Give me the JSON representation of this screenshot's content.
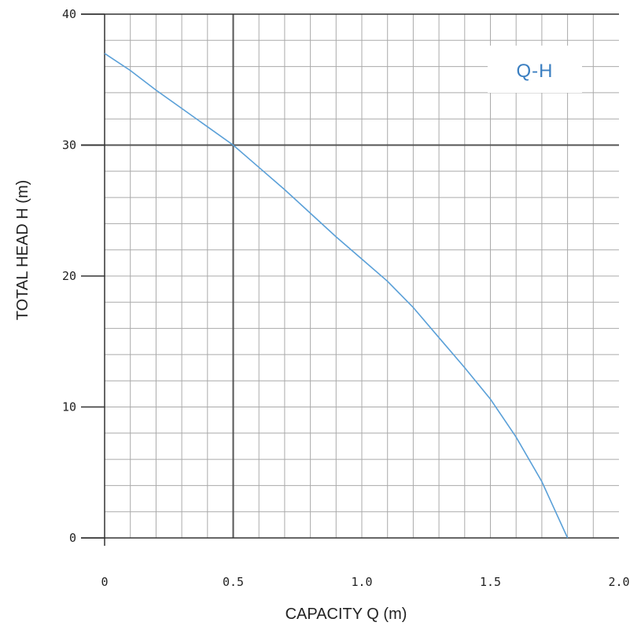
{
  "chart_data": {
    "type": "line",
    "title": "",
    "xlabel": "CAPACITY Q (m)",
    "ylabel": "TOTAL HEAD H (m)",
    "xlim": [
      0,
      2.0
    ],
    "ylim": [
      0,
      40
    ],
    "x_ticks": [
      0,
      0.5,
      1.0,
      1.5,
      2.0
    ],
    "x_tick_labels": [
      "0",
      "0.5",
      "1.0",
      "1.5",
      "2.0"
    ],
    "y_ticks": [
      0,
      10,
      20,
      30,
      40
    ],
    "y_tick_labels": [
      "0",
      "10",
      "20",
      "30",
      "40"
    ],
    "grid": true,
    "legend_position": "top-right",
    "series": [
      {
        "name": "Q-H",
        "color": "#5aa0d8",
        "x": [
          0,
          0.1,
          0.2,
          0.3,
          0.4,
          0.5,
          0.6,
          0.7,
          0.8,
          0.9,
          1.0,
          1.1,
          1.2,
          1.3,
          1.4,
          1.5,
          1.6,
          1.7,
          1.8
        ],
        "y": [
          37,
          35.7,
          34.2,
          32.8,
          31.4,
          30,
          28.3,
          26.6,
          24.8,
          23,
          21.3,
          19.6,
          17.6,
          15.3,
          13,
          10.6,
          7.7,
          4.3,
          0
        ]
      }
    ]
  },
  "colors": {
    "grid_minor": "#aaaaaa",
    "grid_major": "#555555",
    "axis": "#333333",
    "series": "#5aa0d8",
    "legend_text": "#3b7fc1"
  }
}
